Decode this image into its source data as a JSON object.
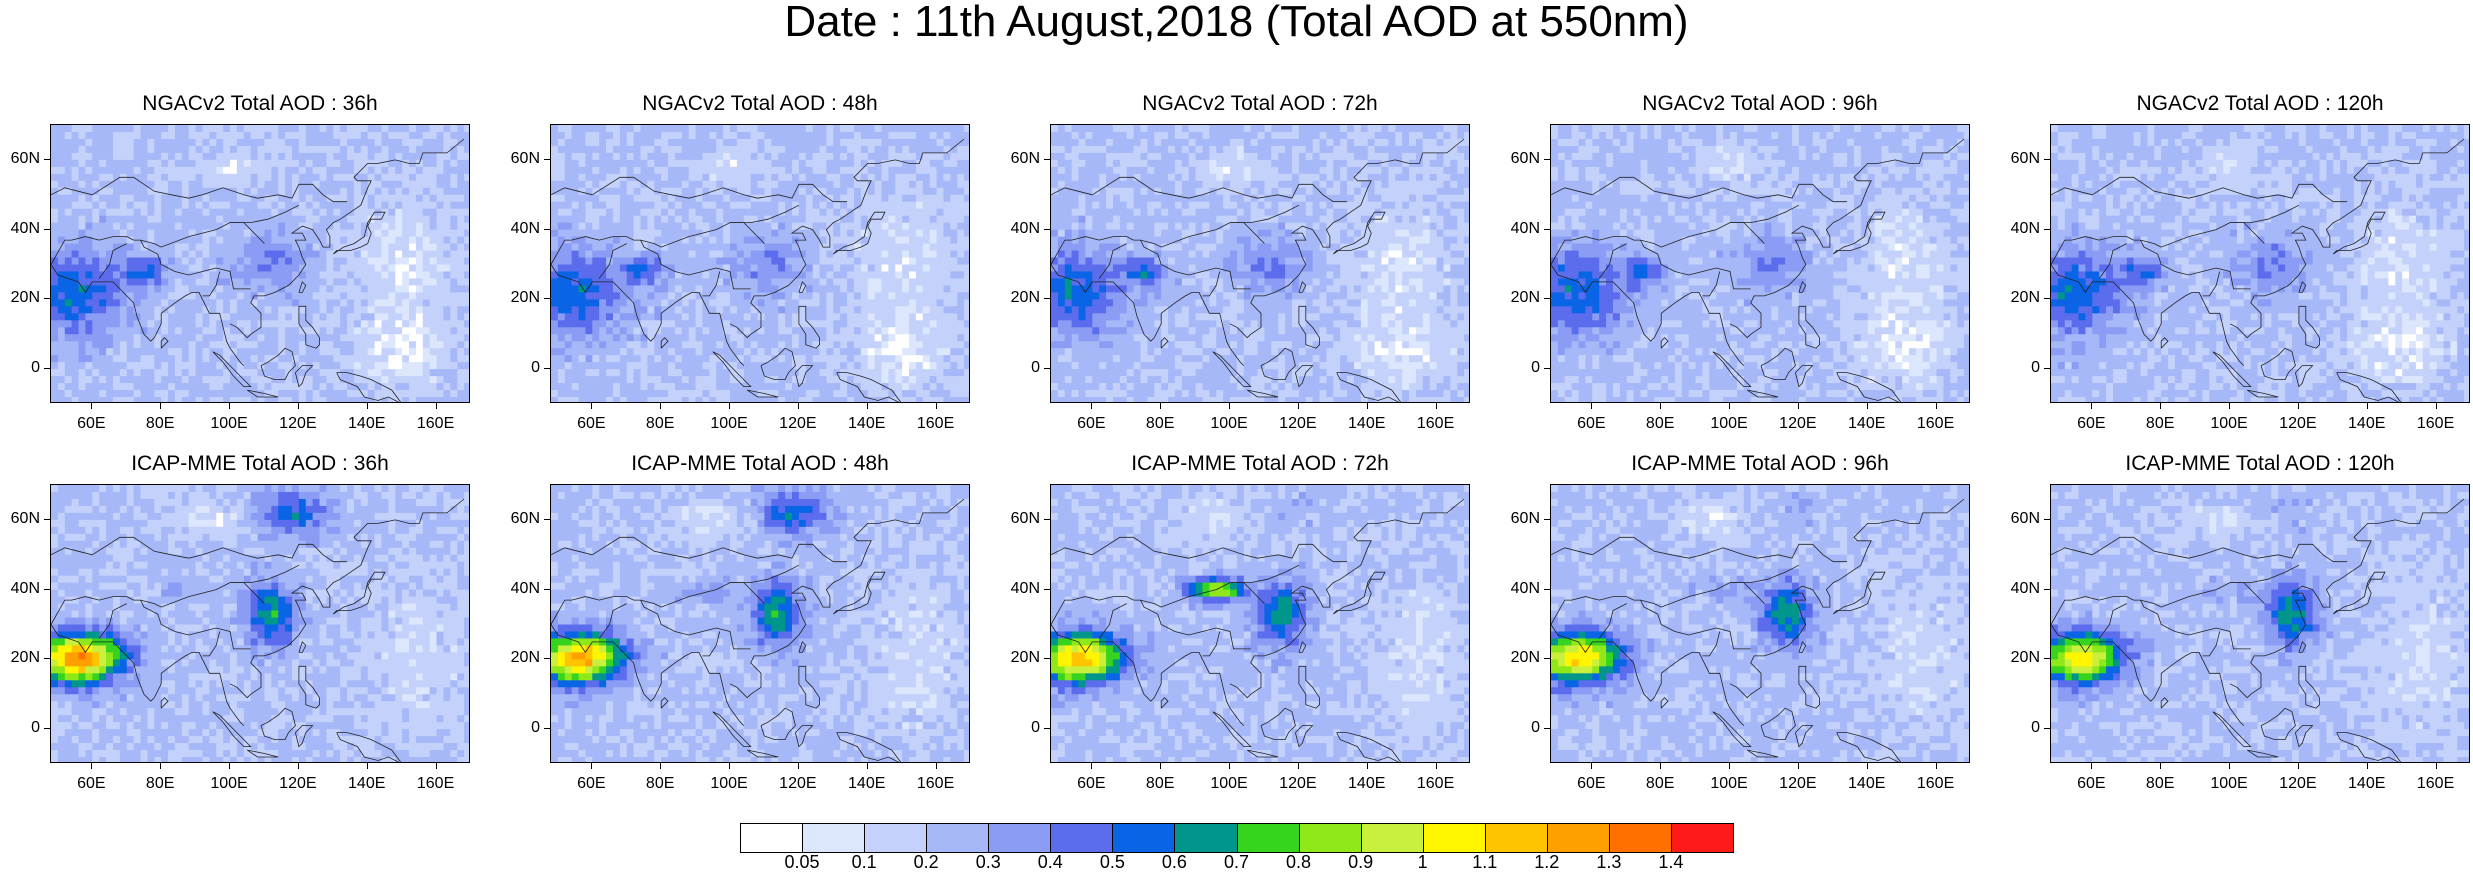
{
  "title": "Date : 11th August,2018 (Total AOD at 550nm)",
  "lat_labels": [
    "60N",
    "40N",
    "20N",
    "0"
  ],
  "lon_labels": [
    "60E",
    "80E",
    "100E",
    "120E",
    "140E",
    "160E"
  ],
  "panels": [
    {
      "title": "NGACv2 Total AOD : 36h",
      "model": "NGACv2",
      "lead": "36h"
    },
    {
      "title": "NGACv2 Total AOD : 48h",
      "model": "NGACv2",
      "lead": "48h"
    },
    {
      "title": "NGACv2 Total AOD : 72h",
      "model": "NGACv2",
      "lead": "72h"
    },
    {
      "title": "NGACv2 Total AOD : 96h",
      "model": "NGACv2",
      "lead": "96h"
    },
    {
      "title": "NGACv2 Total AOD : 120h",
      "model": "NGACv2",
      "lead": "120h"
    },
    {
      "title": "ICAP-MME Total AOD : 36h",
      "model": "ICAP-MME",
      "lead": "36h"
    },
    {
      "title": "ICAP-MME Total AOD : 48h",
      "model": "ICAP-MME",
      "lead": "48h"
    },
    {
      "title": "ICAP-MME Total AOD : 72h",
      "model": "ICAP-MME",
      "lead": "72h"
    },
    {
      "title": "ICAP-MME Total AOD : 96h",
      "model": "ICAP-MME",
      "lead": "96h"
    },
    {
      "title": "ICAP-MME Total AOD : 120h",
      "model": "ICAP-MME",
      "lead": "120h"
    }
  ],
  "colorbar": {
    "labels": [
      "0.05",
      "0.1",
      "0.2",
      "0.3",
      "0.4",
      "0.5",
      "0.6",
      "0.7",
      "0.8",
      "0.9",
      "1",
      "1.1",
      "1.2",
      "1.3",
      "1.4"
    ],
    "colors": [
      "#ffffff",
      "#dce6fc",
      "#c4d2fb",
      "#a6b8f8",
      "#8a9cf4",
      "#5b6ded",
      "#0a64e6",
      "#00968c",
      "#36d41e",
      "#8ee81a",
      "#c8f03c",
      "#fff500",
      "#ffc400",
      "#ffa000",
      "#ff7000",
      "#ff1a1a"
    ]
  }
}
